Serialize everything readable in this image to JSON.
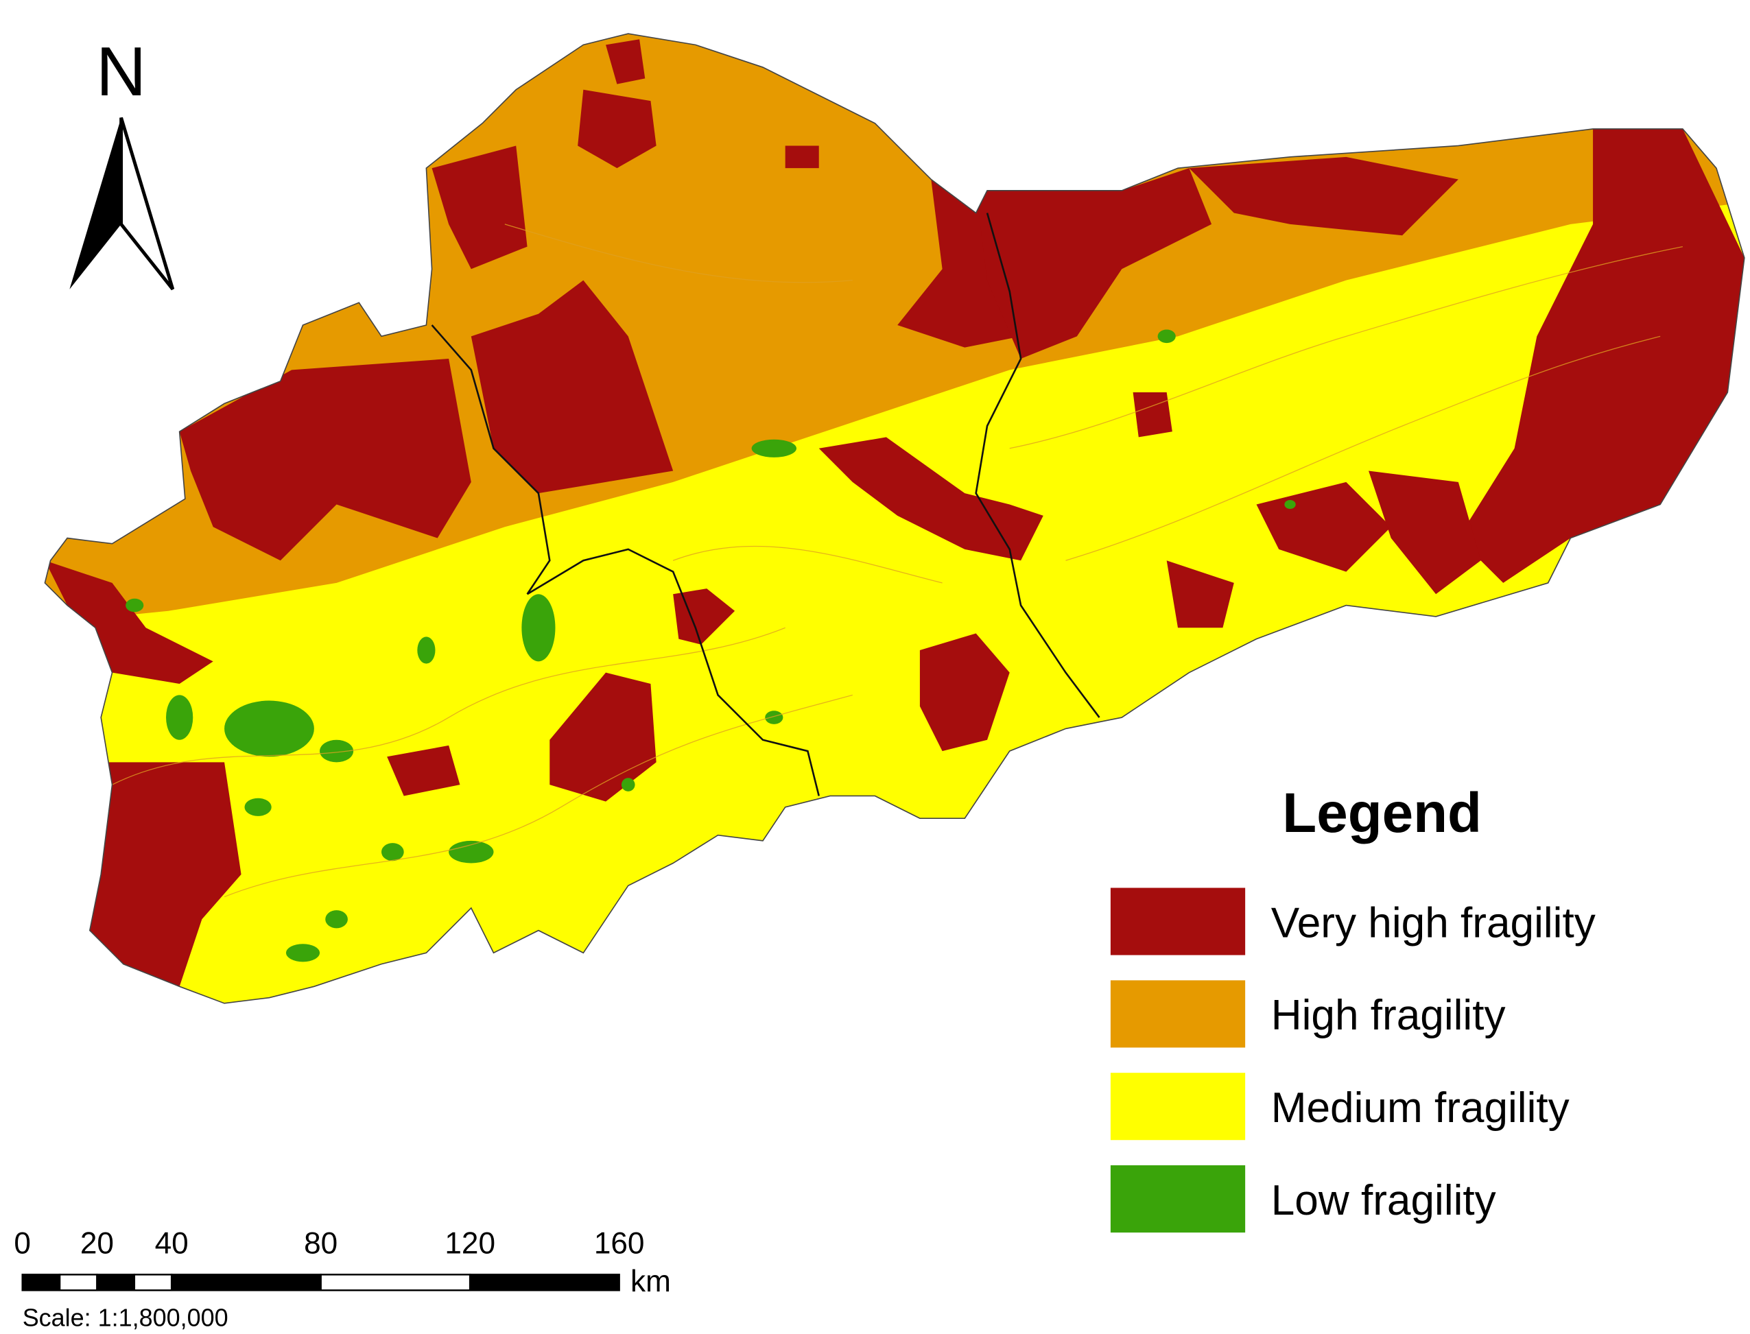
{
  "north_label": "N",
  "legend": {
    "title": "Legend",
    "items": [
      {
        "label": "Very high fragility",
        "color": "#a50d0d"
      },
      {
        "label": "High fragility",
        "color": "#e69a00"
      },
      {
        "label": "Medium fragility",
        "color": "#ffff00"
      },
      {
        "label": "Low fragility",
        "color": "#3aa40a"
      }
    ]
  },
  "scale_bar": {
    "ticks": [
      0,
      20,
      40,
      80,
      120,
      160
    ],
    "unit": "km",
    "scale_text": "Scale: 1:1,800,000"
  }
}
